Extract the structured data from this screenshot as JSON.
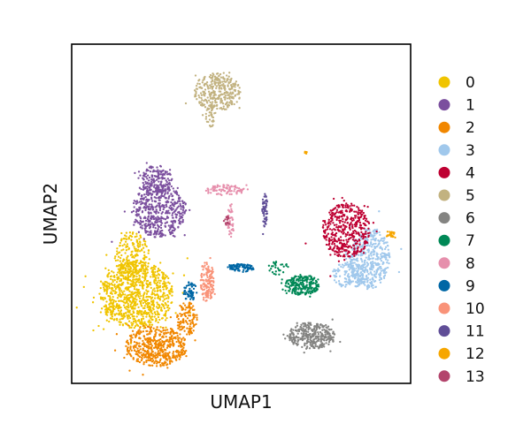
{
  "chart_data": {
    "type": "scatter",
    "title": "",
    "xlabel": "UMAP1",
    "ylabel": "UMAP2",
    "xlim": [
      0,
      100
    ],
    "ylim": [
      0,
      100
    ],
    "grid": false,
    "ticks": false,
    "legend_placement": "right",
    "clusters": [
      {
        "name": "0",
        "color": "#f0c400",
        "blobs": [
          {
            "cx": 19,
            "cy": 26,
            "rx": 11,
            "ry": 10,
            "n": 900
          },
          {
            "cx": 18,
            "cy": 37,
            "rx": 5,
            "ry": 8,
            "n": 220
          }
        ]
      },
      {
        "name": "1",
        "color": "#7b4f9e",
        "blobs": [
          {
            "cx": 26,
            "cy": 51,
            "rx": 8,
            "ry": 8,
            "n": 520
          },
          {
            "cx": 25,
            "cy": 60,
            "rx": 4.5,
            "ry": 4.5,
            "n": 160
          }
        ]
      },
      {
        "name": "2",
        "color": "#f18700",
        "blobs": [
          {
            "cx": 25,
            "cy": 11,
            "rx": 9,
            "ry": 6,
            "n": 520
          },
          {
            "cx": 34,
            "cy": 19,
            "rx": 3,
            "ry": 5,
            "n": 120
          }
        ]
      },
      {
        "name": "3",
        "color": "#a0c8ec",
        "blobs": [
          {
            "cx": 88,
            "cy": 37,
            "rx": 6,
            "ry": 9,
            "n": 420
          },
          {
            "cx": 82,
            "cy": 32,
            "rx": 5,
            "ry": 4,
            "n": 150
          }
        ]
      },
      {
        "name": "4",
        "color": "#be0032",
        "blobs": [
          {
            "cx": 81,
            "cy": 45,
            "rx": 7,
            "ry": 8,
            "n": 450
          }
        ]
      },
      {
        "name": "5",
        "color": "#c2b280",
        "blobs": [
          {
            "cx": 43,
            "cy": 86,
            "rx": 7,
            "ry": 5.5,
            "n": 320
          },
          {
            "cx": 41,
            "cy": 79,
            "rx": 1.5,
            "ry": 3.5,
            "n": 40
          }
        ]
      },
      {
        "name": "6",
        "color": "#848482",
        "blobs": [
          {
            "cx": 71,
            "cy": 14,
            "rx": 7,
            "ry": 4,
            "n": 330
          }
        ]
      },
      {
        "name": "7",
        "color": "#008856",
        "blobs": [
          {
            "cx": 68,
            "cy": 29,
            "rx": 5,
            "ry": 3,
            "n": 220
          },
          {
            "cx": 61,
            "cy": 34,
            "rx": 3,
            "ry": 2,
            "n": 30
          }
        ]
      },
      {
        "name": "8",
        "color": "#e68fac",
        "blobs": [
          {
            "cx": 45,
            "cy": 57,
            "rx": 6,
            "ry": 1.6,
            "n": 90
          },
          {
            "cx": 47,
            "cy": 48,
            "rx": 1,
            "ry": 5,
            "n": 40
          }
        ]
      },
      {
        "name": "9",
        "color": "#0067a5",
        "blobs": [
          {
            "cx": 50,
            "cy": 34,
            "rx": 4,
            "ry": 1.2,
            "n": 90
          },
          {
            "cx": 35,
            "cy": 27,
            "rx": 2,
            "ry": 3,
            "n": 60
          }
        ]
      },
      {
        "name": "10",
        "color": "#f99379",
        "blobs": [
          {
            "cx": 40,
            "cy": 30,
            "rx": 2,
            "ry": 6,
            "n": 140
          }
        ]
      },
      {
        "name": "11",
        "color": "#604e97",
        "blobs": [
          {
            "cx": 57,
            "cy": 51,
            "rx": 0.8,
            "ry": 5,
            "n": 60
          }
        ]
      },
      {
        "name": "12",
        "color": "#f6a600",
        "blobs": [
          {
            "cx": 94,
            "cy": 44,
            "rx": 1.3,
            "ry": 1,
            "n": 25
          },
          {
            "cx": 69,
            "cy": 68,
            "rx": 0.4,
            "ry": 0.4,
            "n": 6
          }
        ]
      },
      {
        "name": "13",
        "color": "#b3446c",
        "blobs": [
          {
            "cx": 46,
            "cy": 48,
            "rx": 0.8,
            "ry": 1.5,
            "n": 15
          }
        ]
      }
    ]
  }
}
